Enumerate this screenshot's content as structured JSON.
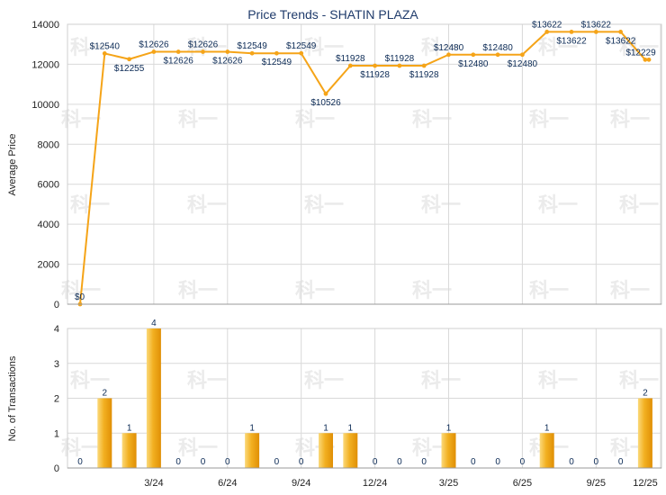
{
  "chart_data": [
    {
      "type": "line",
      "title": "Price Trends - SHATIN PLAZA",
      "ylabel": "Average Price",
      "ylim": [
        0,
        14000
      ],
      "yticks": [
        "0",
        "2000",
        "4000",
        "6000",
        "8000",
        "10000",
        "12000",
        "14000"
      ],
      "x": [
        "2023-12",
        "2024-01",
        "2024-02",
        "2024-03",
        "2024-04",
        "2024-05",
        "2024-06",
        "2024-07",
        "2024-08",
        "2024-09",
        "2024-10",
        "2024-11",
        "2024-12",
        "2025-01",
        "2025-02",
        "2025-03",
        "2025-04",
        "2025-05",
        "2025-06",
        "2025-07",
        "2025-08",
        "2025-09",
        "2025-10",
        "2025-11",
        "2025-12"
      ],
      "values": [
        0,
        12540,
        12255,
        12626,
        12626,
        12626,
        12626,
        12549,
        12549,
        12549,
        10526,
        11928,
        11928,
        11928,
        11928,
        12480,
        12480,
        12480,
        12480,
        13622,
        13622,
        13622,
        13622,
        12229,
        12229
      ],
      "labels": [
        "$0",
        "$12540",
        "$12255",
        "$12626",
        "$12626",
        "$12626",
        "$12626",
        "$12549",
        "$12549",
        "$12549",
        "$10526",
        "$11928",
        "$11928",
        "$11928",
        "$11928",
        "$12480",
        "$12480",
        "$12480",
        "$12480",
        "$13622",
        "$13622",
        "$13622",
        "$13622",
        "$12229"
      ],
      "grid": true,
      "color": "#f5a418"
    },
    {
      "type": "bar",
      "ylabel": "No. of Transactions",
      "ylim": [
        0,
        4
      ],
      "yticks": [
        "0",
        "1",
        "2",
        "3",
        "4"
      ],
      "x": [
        "2023-12",
        "2024-01",
        "2024-02",
        "2024-03",
        "2024-04",
        "2024-05",
        "2024-06",
        "2024-07",
        "2024-08",
        "2024-09",
        "2024-10",
        "2024-11",
        "2024-12",
        "2025-01",
        "2025-02",
        "2025-03",
        "2025-04",
        "2025-05",
        "2025-06",
        "2025-07",
        "2025-08",
        "2025-09",
        "2025-10",
        "2025-11",
        "2025-12"
      ],
      "values": [
        0,
        2,
        1,
        4,
        0,
        0,
        0,
        1,
        0,
        0,
        1,
        1,
        0,
        0,
        0,
        1,
        0,
        0,
        0,
        1,
        0,
        0,
        0,
        2,
        0
      ],
      "labels": [
        "0",
        "2",
        "1",
        "4",
        "0",
        "0",
        "0",
        "1",
        "0",
        "0",
        "1",
        "1",
        "0",
        "0",
        "0",
        "1",
        "0",
        "0",
        "0",
        "1",
        "0",
        "0",
        "0",
        "2"
      ],
      "grid": true,
      "color": "#f2b021"
    }
  ],
  "shared_xticks": [
    "3/24",
    "6/24",
    "9/24",
    "12/24",
    "3/25",
    "6/25",
    "9/25",
    "12/25"
  ],
  "watermark_text": "科一"
}
